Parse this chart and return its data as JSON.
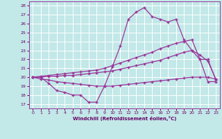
{
  "xlabel": "Windchill (Refroidissement éolien,°C)",
  "background_color": "#c2e8e8",
  "grid_color": "#ffffff",
  "line_color": "#993399",
  "xlim": [
    -0.5,
    23.5
  ],
  "ylim": [
    16.5,
    28.5
  ],
  "xticks": [
    0,
    1,
    2,
    3,
    4,
    5,
    6,
    7,
    8,
    9,
    10,
    11,
    12,
    13,
    14,
    15,
    16,
    17,
    18,
    19,
    20,
    21,
    22,
    23
  ],
  "yticks": [
    17,
    18,
    19,
    20,
    21,
    22,
    23,
    24,
    25,
    26,
    27,
    28
  ],
  "line1_x": [
    0,
    1,
    2,
    3,
    4,
    5,
    6,
    7,
    8,
    9,
    10,
    11,
    12,
    13,
    14,
    15,
    16,
    17,
    18,
    19,
    20,
    21,
    22,
    23
  ],
  "line1_y": [
    20.0,
    20.0,
    19.3,
    18.5,
    18.3,
    18.0,
    18.0,
    17.2,
    17.2,
    19.0,
    21.2,
    23.5,
    26.5,
    27.3,
    27.8,
    26.8,
    26.5,
    26.2,
    26.5,
    24.2,
    23.0,
    22.0,
    19.5,
    19.5
  ],
  "line2_x": [
    0,
    1,
    2,
    3,
    4,
    5,
    6,
    7,
    8,
    9,
    10,
    11,
    12,
    13,
    14,
    15,
    16,
    17,
    18,
    19,
    20,
    21,
    22,
    23
  ],
  "line2_y": [
    20.0,
    20.1,
    20.2,
    20.3,
    20.4,
    20.5,
    20.6,
    20.7,
    20.8,
    21.0,
    21.3,
    21.6,
    21.9,
    22.2,
    22.5,
    22.8,
    23.2,
    23.5,
    23.8,
    24.0,
    24.2,
    22.0,
    22.0,
    19.7
  ],
  "line3_x": [
    0,
    1,
    2,
    3,
    4,
    5,
    6,
    7,
    8,
    9,
    10,
    11,
    12,
    13,
    14,
    15,
    16,
    17,
    18,
    19,
    20,
    21,
    22,
    23
  ],
  "line3_y": [
    20.0,
    20.0,
    20.1,
    20.1,
    20.2,
    20.2,
    20.3,
    20.4,
    20.5,
    20.6,
    20.7,
    20.9,
    21.1,
    21.3,
    21.5,
    21.7,
    21.9,
    22.2,
    22.5,
    22.8,
    23.0,
    22.5,
    21.8,
    19.8
  ],
  "line4_x": [
    0,
    1,
    2,
    3,
    4,
    5,
    6,
    7,
    8,
    9,
    10,
    11,
    12,
    13,
    14,
    15,
    16,
    17,
    18,
    19,
    20,
    21,
    22,
    23
  ],
  "line4_y": [
    20.0,
    19.8,
    19.7,
    19.5,
    19.4,
    19.3,
    19.2,
    19.1,
    19.0,
    19.0,
    19.0,
    19.1,
    19.2,
    19.3,
    19.4,
    19.5,
    19.6,
    19.7,
    19.8,
    19.9,
    20.0,
    20.0,
    20.0,
    19.8
  ]
}
